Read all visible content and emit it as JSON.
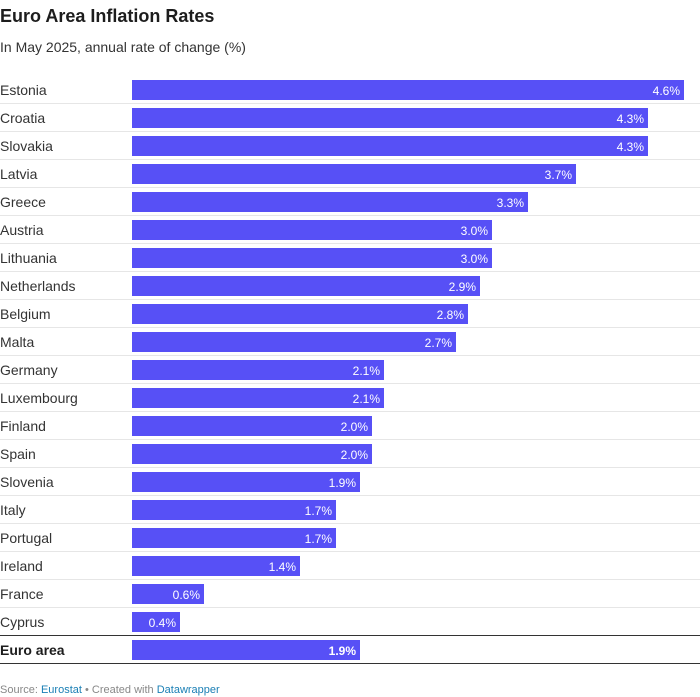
{
  "title": "Euro Area Inflation Rates",
  "subtitle": "In May 2025, annual rate of change (%)",
  "footer": {
    "source_prefix": "Source: ",
    "source_name": "Eurostat",
    "created_prefix": " • Created with ",
    "created_tool": "Datawrapper"
  },
  "colors": {
    "bar": "#5750f6",
    "bar_label": "#ffffff",
    "category_text": "#333333",
    "row_divider": "#e6e6e6",
    "total_divider": "#333333",
    "link": "#1a7fb5"
  },
  "chart_data": {
    "type": "bar",
    "orientation": "horizontal",
    "value_suffix": "%",
    "xlim": [
      0,
      4.6
    ],
    "grid": false,
    "categories": [
      "Estonia",
      "Croatia",
      "Slovakia",
      "Latvia",
      "Greece",
      "Austria",
      "Lithuania",
      "Netherlands",
      "Belgium",
      "Malta",
      "Germany",
      "Luxembourg",
      "Finland",
      "Spain",
      "Slovenia",
      "Italy",
      "Portugal",
      "Ireland",
      "France",
      "Cyprus",
      "Euro area"
    ],
    "values": [
      4.6,
      4.3,
      4.3,
      3.7,
      3.3,
      3.0,
      3.0,
      2.9,
      2.8,
      2.7,
      2.1,
      2.1,
      2.0,
      2.0,
      1.9,
      1.7,
      1.7,
      1.4,
      0.6,
      0.4,
      1.9
    ],
    "labels": [
      "4.6%",
      "4.3%",
      "4.3%",
      "3.7%",
      "3.3%",
      "3.0%",
      "3.0%",
      "2.9%",
      "2.8%",
      "2.7%",
      "2.1%",
      "2.1%",
      "2.0%",
      "2.0%",
      "1.9%",
      "1.7%",
      "1.7%",
      "1.4%",
      "0.6%",
      "0.4%",
      "1.9%"
    ],
    "highlighted": [
      "Euro area"
    ]
  }
}
